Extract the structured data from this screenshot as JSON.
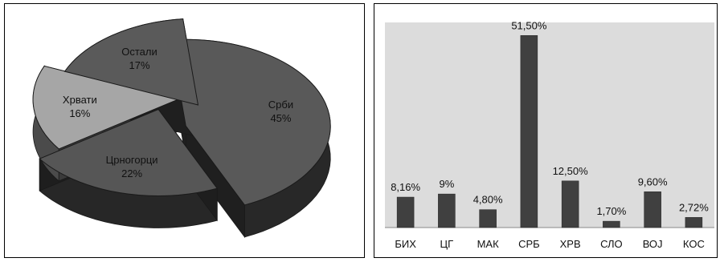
{
  "chart_data": [
    {
      "type": "pie",
      "title": "",
      "labels": [
        "Срби",
        "Црногорци",
        "Хрвати",
        "Остали"
      ],
      "values": [
        45,
        22,
        16,
        17
      ],
      "value_labels": [
        "45%",
        "22%",
        "16%",
        "17%"
      ],
      "exploded": true,
      "style": "3d",
      "colors": {
        "Срби": "#595959",
        "Црногорци": "#565656",
        "Хрвати": "#a6a6a6",
        "Остали": "#5a5a5a"
      }
    },
    {
      "type": "bar",
      "title": "",
      "xlabel": "",
      "ylabel": "",
      "categories": [
        "БИХ",
        "ЦГ",
        "МАК",
        "СРБ",
        "ХРВ",
        "СЛО",
        "ВОЈ",
        "КОС"
      ],
      "values": [
        8.16,
        9,
        4.8,
        51.5,
        12.5,
        1.7,
        9.6,
        2.72
      ],
      "value_labels": [
        "8,16%",
        "9%",
        "4,80%",
        "51,50%",
        "12,50%",
        "1,70%",
        "9,60%",
        "2,72%"
      ],
      "ylim": [
        0,
        55
      ],
      "grid": false,
      "colors": {
        "bar": "#404040",
        "plot_background": "#dcdcdc"
      }
    }
  ]
}
